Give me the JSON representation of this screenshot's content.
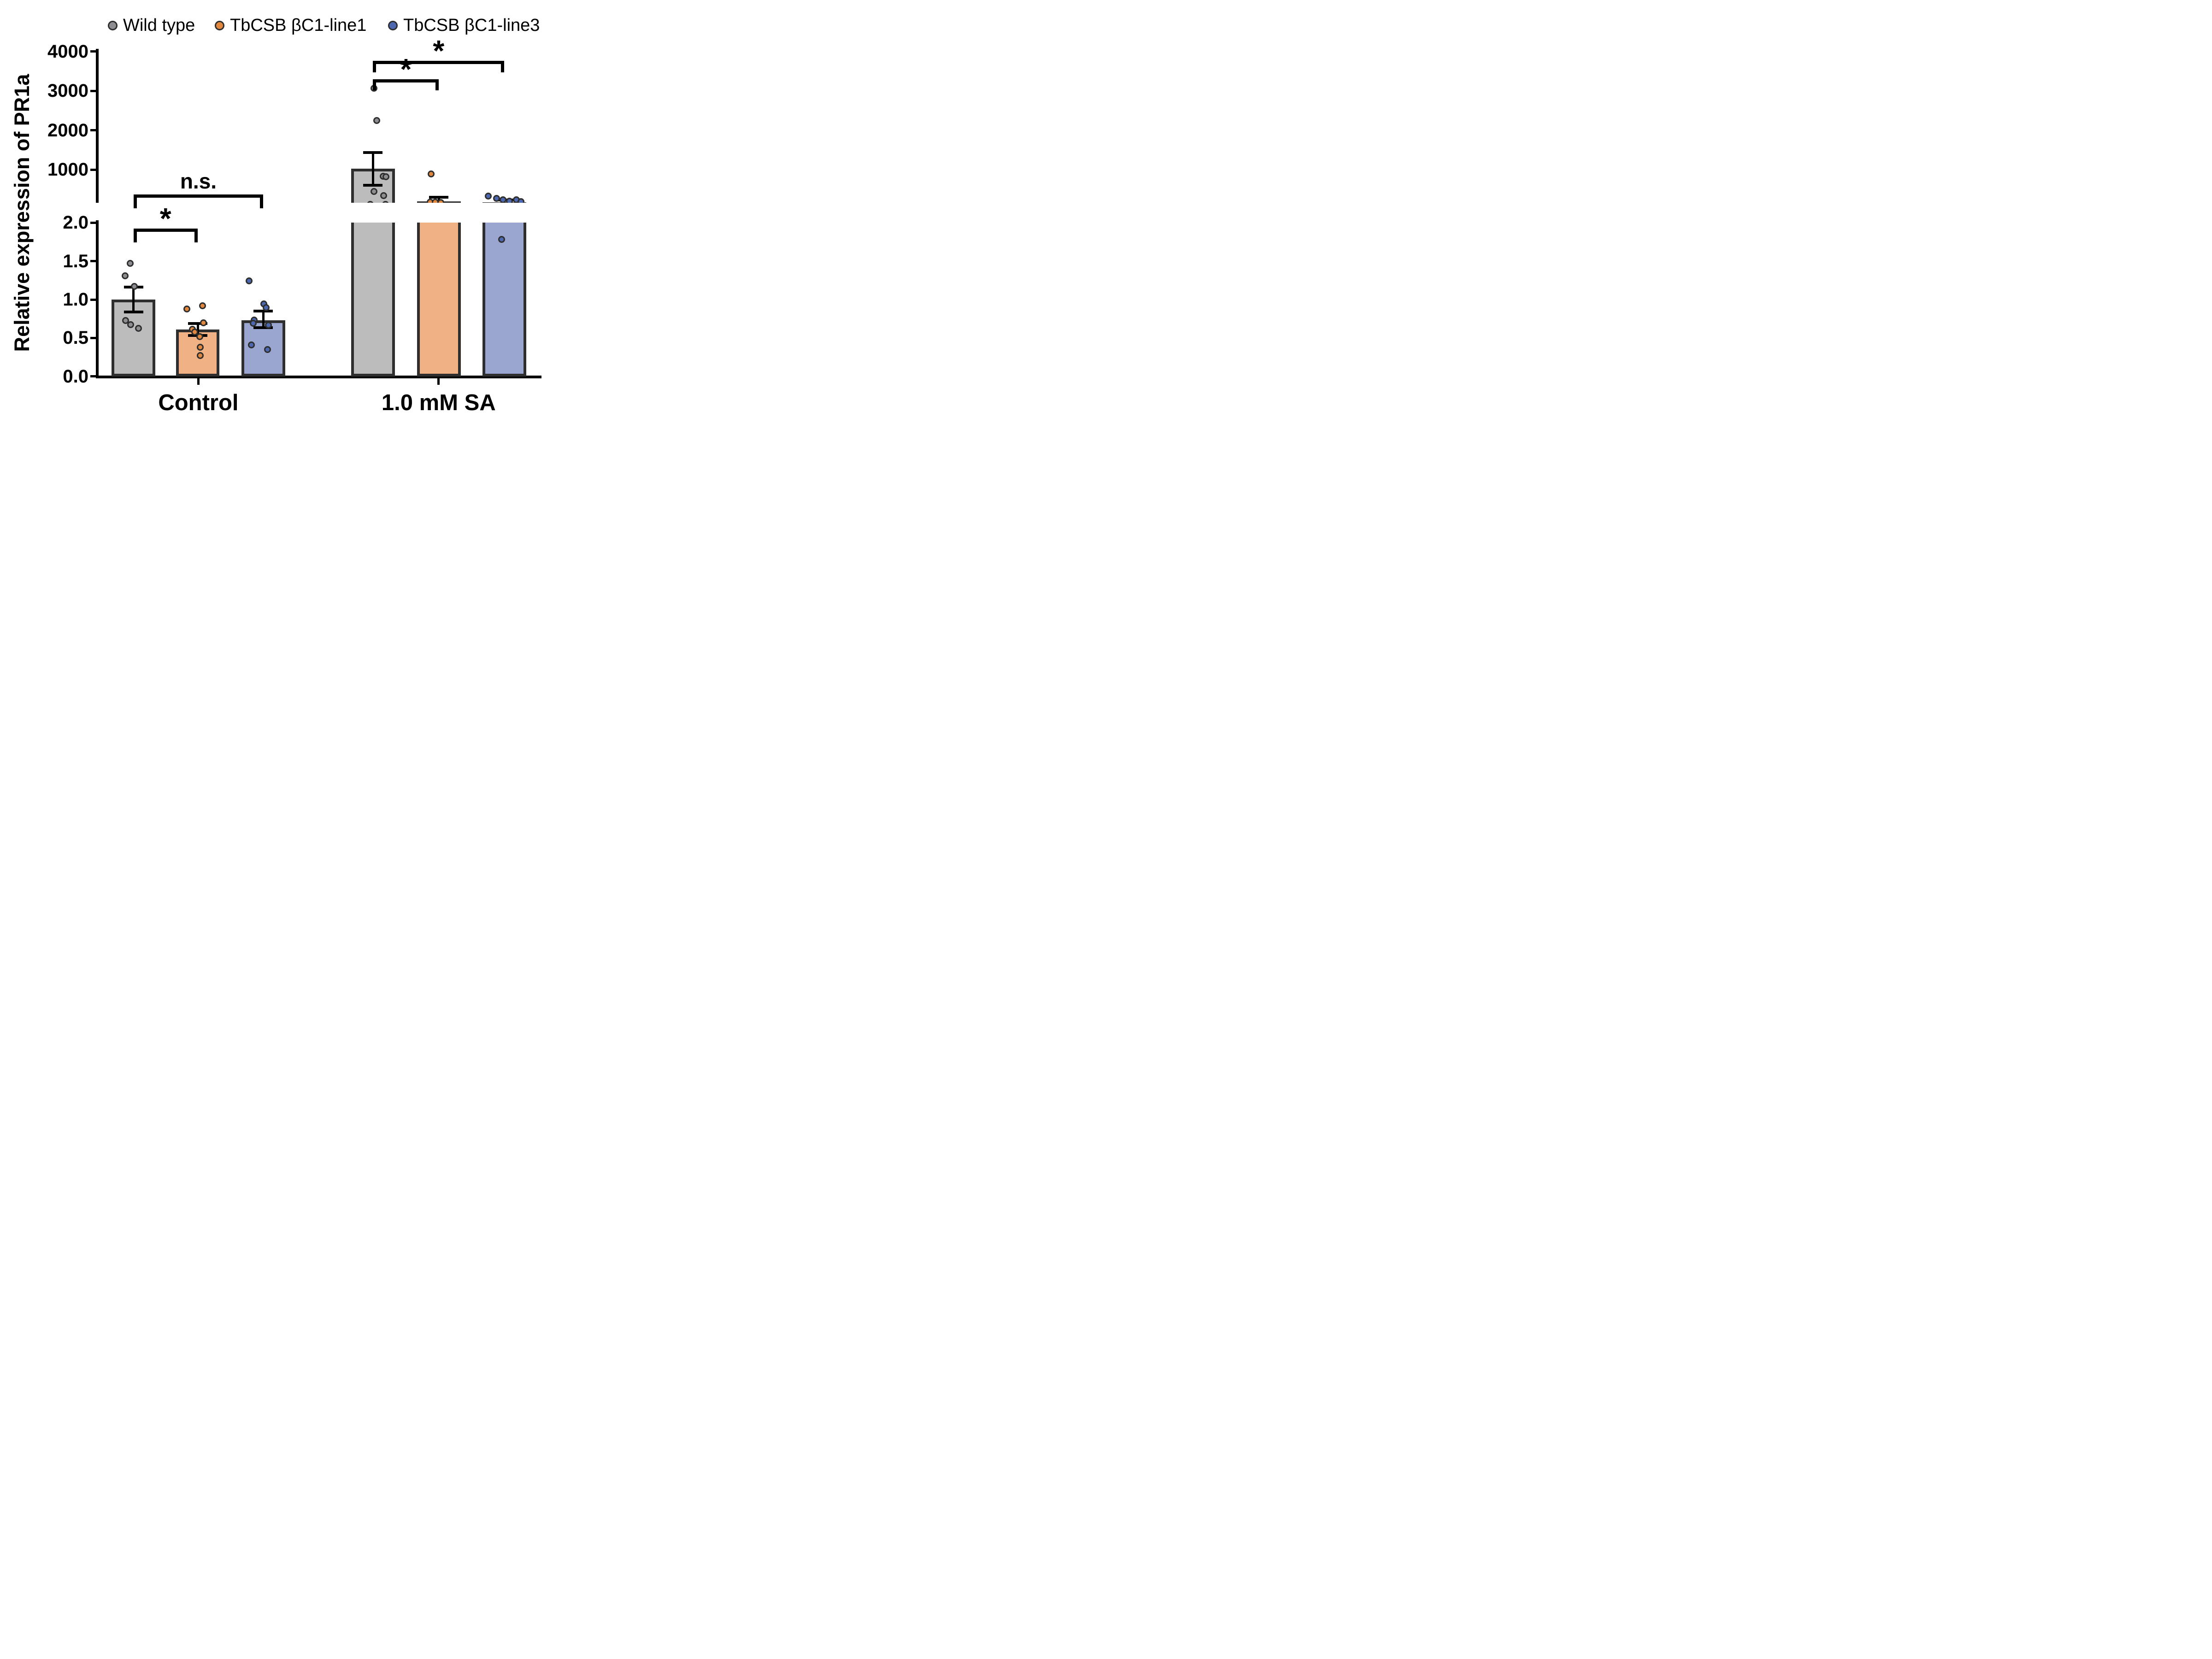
{
  "figure": {
    "background": "#ffffff"
  },
  "axis": {
    "y_title": "Relative expression of PR1a",
    "top_segment_ticks": [
      "1000",
      "2000",
      "3000",
      "4000"
    ],
    "top_segment_tick_values": [
      1000,
      2000,
      3000,
      4000
    ],
    "top_segment_range": [
      160,
      4000
    ],
    "bottom_segment_ticks": [
      "0.0",
      "0.5",
      "1.0",
      "1.5",
      "2.0"
    ],
    "bottom_segment_tick_values": [
      0.0,
      0.5,
      1.0,
      1.5,
      2.0
    ],
    "bottom_segment_range": [
      0.0,
      2.0
    ],
    "broken_axis": true
  },
  "chart_data": {
    "type": "bar",
    "title": "",
    "xlabel": "",
    "ylabel": "Relative expression of PR1a",
    "grid": false,
    "legend_position": "top",
    "categories": [
      "Control",
      "1.0 mM SA"
    ],
    "series": [
      {
        "name": "Wild type",
        "bar_color": "#BCBCBC",
        "point_color": "#8E8E92"
      },
      {
        "name": "TbCSB βC1-line1",
        "bar_color": "#F0B184",
        "point_color": "#E2873E"
      },
      {
        "name": "TbCSB βC1-line3",
        "bar_color": "#9AA6CF",
        "point_color": "#4D68B0"
      }
    ],
    "groups": [
      {
        "label": "Control",
        "segment": "bottom",
        "bars": [
          {
            "series": "Wild type",
            "mean": 1.0,
            "err_hi": 1.16,
            "err_lo": 0.84,
            "points": [
              [
                -7.25,
                1.47
              ],
              [
                -17.75,
                1.31
              ],
              [
                2,
                1.17
              ],
              [
                -17,
                0.73
              ],
              [
                -6.25,
                0.675
              ],
              [
                11,
                0.627
              ]
            ]
          },
          {
            "series": "TbCSB βC1-line1",
            "mean": 0.61,
            "err_hi": 0.69,
            "err_lo": 0.535,
            "points": [
              [
                -23.75,
                0.88
              ],
              [
                10.75,
                0.92
              ],
              [
                12.75,
                0.7
              ],
              [
                -11.25,
                0.615
              ],
              [
                -6.5,
                0.576
              ],
              [
                4.5,
                0.52
              ],
              [
                5.5,
                0.38
              ],
              [
                5.5,
                0.27
              ]
            ]
          },
          {
            "series": "TbCSB βC1-line3",
            "mean": 0.73,
            "err_hi": 0.85,
            "err_lo": 0.635,
            "points": [
              [
                -31.4,
                1.24
              ],
              [
                0.85,
                0.946
              ],
              [
                6.1,
                0.895
              ],
              [
                -19.9,
                0.736
              ],
              [
                -21.65,
                0.693
              ],
              [
                11.1,
                0.669
              ],
              [
                -26.4,
                0.408
              ],
              [
                9.1,
                0.352
              ]
            ]
          }
        ]
      },
      {
        "label": "1.0 mM SA",
        "segment": "top",
        "bars": [
          {
            "series": "Wild type",
            "mean": 1020,
            "err_hi": 1430,
            "err_lo": 600,
            "points": [
              [
                1.75,
                3065
              ],
              [
                8.5,
                2240
              ],
              [
                21.75,
                830
              ],
              [
                28.5,
                820
              ],
              [
                1.75,
                440
              ],
              [
                22.75,
                340
              ],
              [
                -6.25,
                120
              ],
              [
                27.5,
                120
              ]
            ]
          },
          {
            "series": "TbCSB βC1-line1",
            "mean": 195,
            "err_hi": 295,
            "err_lo": 95,
            "points": [
              [
                -16.8,
                890
              ],
              [
                -19.3,
                180
              ],
              [
                -8.3,
                170
              ],
              [
                3.7,
                165
              ]
            ]
          },
          {
            "series": "TbCSB βC1-line3",
            "mean": 165,
            "err_hi": 230,
            "err_lo": 100,
            "points": [
              [
                -34.9,
                330
              ],
              [
                -16.65,
                265
              ],
              [
                -2.9,
                230
              ],
              [
                10.85,
                195
              ],
              [
                25.6,
                235
              ],
              [
                35.6,
                185
              ],
              {
                "dx": -6.15,
                "v": 1.78,
                "seg": "bottom"
              }
            ]
          }
        ]
      }
    ],
    "annotations": [
      {
        "type": "text",
        "label": "n.s.",
        "x1": 289.5,
        "x2": 571.4,
        "y": 422,
        "drop": 23
      },
      {
        "type": "star",
        "label": "*",
        "x1": 289.5,
        "x2": 429,
        "y": 496,
        "drop": 23
      },
      {
        "type": "star",
        "label": "*",
        "x1": 809.25,
        "x2": 952.3,
        "y": 172,
        "drop": 17
      },
      {
        "type": "star",
        "label": "*",
        "x1": 809.25,
        "x2": 1094.4,
        "y": 132,
        "drop": 18
      }
    ],
    "colors": {
      "axis": "#000000",
      "bar_border": "#2E2E2E",
      "error_bar": "#000000"
    }
  },
  "legend": {
    "items": [
      {
        "label": "Wild type"
      },
      {
        "label": "TbCSB βC1-line1"
      },
      {
        "label": "TbCSB βC1-line3"
      }
    ]
  }
}
